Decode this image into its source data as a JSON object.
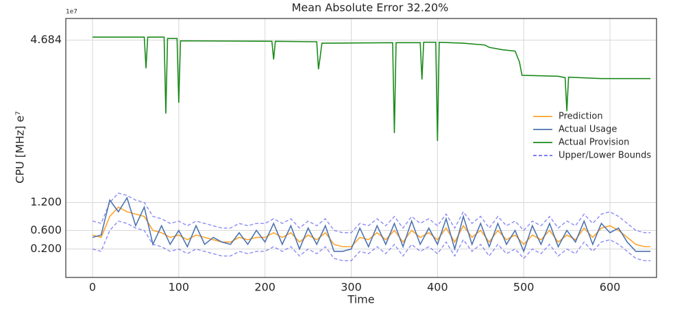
{
  "chart_data": {
    "type": "line",
    "title": "Mean Absolute Error 32.20%",
    "xlabel": "Time",
    "ylabel": "CPU [MHz]  e⁷",
    "offset_text": "1e7",
    "xlim": [
      -31,
      654
    ],
    "ylim": [
      -0.41,
      5.15
    ],
    "xticks": [
      0,
      100,
      200,
      300,
      400,
      500,
      600
    ],
    "yticks": [
      {
        "value": 0.2,
        "label": "0.200"
      },
      {
        "value": 0.6,
        "label": "0.600"
      },
      {
        "value": 1.2,
        "label": "1.200"
      },
      4.684
    ],
    "grid": true,
    "legend_loc": "center right",
    "x": [
      0,
      10,
      20,
      30,
      40,
      50,
      60,
      70,
      80,
      90,
      100,
      110,
      120,
      130,
      140,
      150,
      160,
      170,
      180,
      190,
      200,
      210,
      220,
      230,
      240,
      250,
      260,
      270,
      280,
      290,
      300,
      310,
      320,
      330,
      340,
      350,
      360,
      370,
      380,
      390,
      400,
      410,
      420,
      430,
      440,
      450,
      460,
      470,
      480,
      490,
      500,
      510,
      520,
      530,
      540,
      550,
      560,
      570,
      580,
      590,
      600,
      610,
      620,
      630,
      640,
      647
    ],
    "series": [
      {
        "name": "Prediction",
        "color": "#ffa228",
        "values": [
          0.5,
          0.45,
          0.9,
          1.1,
          1.0,
          0.95,
          0.9,
          0.6,
          0.55,
          0.45,
          0.5,
          0.4,
          0.5,
          0.45,
          0.4,
          0.35,
          0.35,
          0.45,
          0.4,
          0.45,
          0.45,
          0.55,
          0.45,
          0.55,
          0.35,
          0.5,
          0.4,
          0.55,
          0.3,
          0.25,
          0.25,
          0.45,
          0.4,
          0.55,
          0.4,
          0.6,
          0.35,
          0.6,
          0.45,
          0.55,
          0.4,
          0.65,
          0.35,
          0.7,
          0.45,
          0.6,
          0.35,
          0.6,
          0.4,
          0.5,
          0.3,
          0.5,
          0.4,
          0.6,
          0.35,
          0.5,
          0.4,
          0.65,
          0.45,
          0.65,
          0.7,
          0.6,
          0.45,
          0.3,
          0.25,
          0.25
        ]
      },
      {
        "name": "Actual Usage",
        "color": "#4c72b0",
        "values": [
          0.45,
          0.5,
          1.25,
          1.0,
          1.3,
          0.7,
          1.1,
          0.3,
          0.7,
          0.3,
          0.6,
          0.25,
          0.7,
          0.3,
          0.45,
          0.35,
          0.3,
          0.55,
          0.3,
          0.6,
          0.35,
          0.75,
          0.3,
          0.7,
          0.2,
          0.65,
          0.3,
          0.7,
          0.15,
          0.15,
          0.2,
          0.65,
          0.25,
          0.7,
          0.3,
          0.75,
          0.25,
          0.8,
          0.3,
          0.65,
          0.3,
          0.85,
          0.2,
          0.9,
          0.3,
          0.75,
          0.25,
          0.75,
          0.3,
          0.6,
          0.15,
          0.7,
          0.3,
          0.75,
          0.25,
          0.6,
          0.35,
          0.8,
          0.3,
          0.75,
          0.55,
          0.65,
          0.35,
          0.15,
          0.15,
          0.15
        ]
      },
      {
        "name": "Actual Provision",
        "color": "#1a8a1a",
        "x": [
          0,
          60,
          62,
          64,
          83,
          85,
          87,
          98,
          100,
          102,
          208,
          210,
          212,
          260,
          262,
          264,
          266,
          348,
          350,
          352,
          380,
          382,
          384,
          398,
          400,
          402,
          430,
          455,
          460,
          475,
          490,
          495,
          498,
          540,
          548,
          550,
          552,
          590,
          647
        ],
        "values": [
          4.75,
          4.75,
          4.08,
          4.75,
          4.75,
          3.11,
          4.72,
          4.72,
          3.34,
          4.67,
          4.66,
          4.27,
          4.66,
          4.65,
          4.06,
          4.33,
          4.62,
          4.63,
          2.69,
          4.63,
          4.63,
          3.84,
          4.64,
          4.64,
          2.52,
          4.64,
          4.62,
          4.58,
          4.53,
          4.48,
          4.45,
          4.22,
          3.93,
          3.91,
          3.88,
          3.16,
          3.89,
          3.86,
          3.86
        ]
      },
      {
        "name": "Upper/Lower Bounds",
        "color": "#6b6bf5",
        "dashed": true,
        "upper": [
          0.8,
          0.75,
          1.2,
          1.4,
          1.35,
          1.25,
          1.2,
          0.9,
          0.85,
          0.75,
          0.8,
          0.7,
          0.8,
          0.75,
          0.7,
          0.65,
          0.65,
          0.75,
          0.7,
          0.75,
          0.75,
          0.85,
          0.75,
          0.85,
          0.65,
          0.8,
          0.7,
          0.85,
          0.6,
          0.55,
          0.55,
          0.75,
          0.7,
          0.85,
          0.7,
          0.9,
          0.65,
          0.9,
          0.75,
          0.85,
          0.7,
          0.95,
          0.65,
          1.0,
          0.75,
          0.9,
          0.65,
          0.9,
          0.7,
          0.8,
          0.6,
          0.8,
          0.7,
          0.9,
          0.65,
          0.8,
          0.7,
          0.95,
          0.75,
          0.95,
          1.0,
          0.9,
          0.75,
          0.6,
          0.55,
          0.55
        ],
        "lower": [
          0.2,
          0.15,
          0.6,
          0.8,
          0.75,
          0.65,
          0.6,
          0.3,
          0.25,
          0.15,
          0.2,
          0.1,
          0.2,
          0.15,
          0.1,
          0.05,
          0.05,
          0.15,
          0.1,
          0.15,
          0.15,
          0.25,
          0.15,
          0.25,
          0.05,
          0.2,
          0.1,
          0.25,
          0.0,
          -0.05,
          -0.05,
          0.15,
          0.1,
          0.25,
          0.1,
          0.3,
          0.05,
          0.3,
          0.15,
          0.25,
          0.1,
          0.35,
          0.05,
          0.4,
          0.15,
          0.3,
          0.05,
          0.3,
          0.1,
          0.2,
          0.0,
          0.2,
          0.1,
          0.3,
          0.05,
          0.2,
          0.1,
          0.35,
          0.15,
          0.35,
          0.4,
          0.3,
          0.15,
          0.0,
          -0.05,
          -0.05
        ]
      }
    ]
  }
}
